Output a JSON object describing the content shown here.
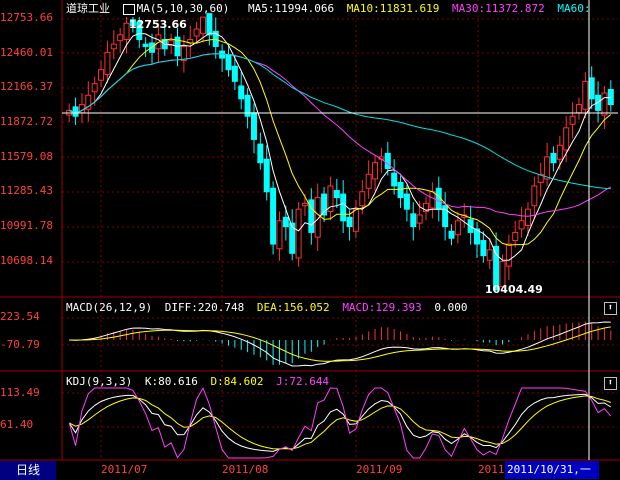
{
  "price_panel": {
    "title": "道琼工业",
    "ma_label": "MA(5,10,30,60)",
    "ma5": "MA5:11994.066",
    "ma10": "MA10:11831.619",
    "ma30": "MA30:11372.872",
    "ma60": "MA60:",
    "y_labels": [
      "12753.66",
      "12460.01",
      "12166.37",
      "11872.72",
      "11579.08",
      "11285.43",
      "10991.78",
      "10698.14"
    ],
    "high_callout": "12753.66",
    "low_callout": "10404.49"
  },
  "macd_panel": {
    "title": "MACD(26,12,9)",
    "diff": "DIFF:220.748",
    "dea": "DEA:156.052",
    "macd": "MACD:129.393",
    "extra": "0.000",
    "y_labels": [
      "223.54",
      "-70.79"
    ]
  },
  "kdj_panel": {
    "title": "KDJ(9,3,3)",
    "k": "K:80.616",
    "d": "D:84.602",
    "j": "J:72.644",
    "y_labels": [
      "113.49",
      "61.40"
    ]
  },
  "bottom_bar": {
    "period_tab": "日线",
    "dates": [
      "2011/07",
      "2011/08",
      "2011/09",
      "2011"
    ],
    "cursor_date": "2011/10/31,一"
  },
  "colors": {
    "up": "#ff3030",
    "down": "#00ffff",
    "ma5": "#ffffff",
    "ma10": "#ffff00",
    "ma30": "#ff40ff",
    "ma60": "#00e0e0",
    "grid": "#800000"
  },
  "chart_data": {
    "type": "candlestick",
    "ylim": [
      10404.49,
      12753.66
    ],
    "closes": [
      11950,
      11900,
      12000,
      12080,
      12180,
      12300,
      12450,
      12520,
      12600,
      12700,
      12680,
      12560,
      12500,
      12450,
      12600,
      12480,
      12550,
      12420,
      12500,
      12560,
      12650,
      12753,
      12600,
      12500,
      12400,
      12300,
      12200,
      12050,
      11900,
      11700,
      11500,
      11250,
      10800,
      11000,
      10950,
      10720,
      11100,
      11150,
      10900,
      11200,
      11050,
      11300,
      11200,
      11000,
      10950,
      11100,
      11250,
      11400,
      11500,
      11550,
      11450,
      11300,
      11200,
      11100,
      10950,
      11050,
      11150,
      11250,
      11100,
      10950,
      10850,
      11000,
      11050,
      10900,
      10800,
      10700,
      10750,
      10404,
      10650,
      10800,
      10900,
      11000,
      11100,
      11300,
      11400,
      11550,
      11500,
      11650,
      11800,
      11900,
      12000,
      12200,
      12050,
      11950,
      12100,
      12000
    ]
  }
}
